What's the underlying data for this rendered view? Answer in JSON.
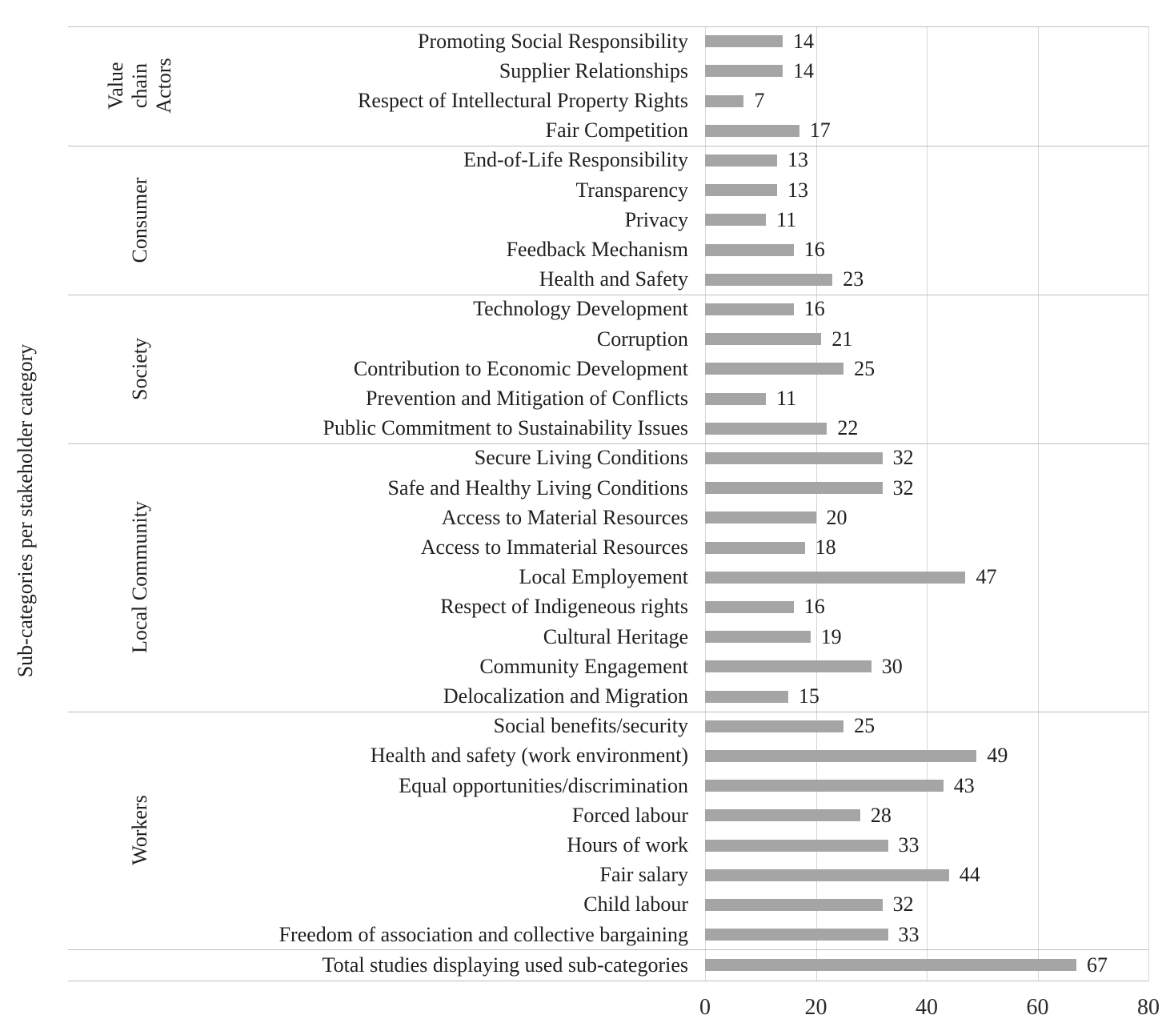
{
  "chart_data": {
    "type": "bar",
    "orientation": "horizontal",
    "title": "",
    "ylabel": "Sub-categories per stakeholder category",
    "xlabel": "",
    "xlim": [
      0,
      80
    ],
    "xticks": [
      "0",
      "20",
      "40",
      "60",
      "80"
    ],
    "grid": "vertical-gridlines-on",
    "legend": "none",
    "bar_color": "#a5a5a5",
    "gridline_color": "#d6d6d6",
    "separator_color": "#bdbdbd",
    "text_color": "#1f1f1f",
    "groups": [
      {
        "label_lines": [
          "Value",
          "chain",
          "Actors"
        ],
        "items": [
          {
            "label": "Promoting Social Responsibility",
            "value": 14
          },
          {
            "label": "Supplier Relationships",
            "value": 14
          },
          {
            "label": "Respect of Intellectural Property Rights",
            "value": 7
          },
          {
            "label": "Fair Competition",
            "value": 17
          }
        ]
      },
      {
        "label_lines": [
          "Consumer"
        ],
        "items": [
          {
            "label": "End-of-Life Responsibility",
            "value": 13
          },
          {
            "label": "Transparency",
            "value": 13
          },
          {
            "label": "Privacy",
            "value": 11
          },
          {
            "label": "Feedback Mechanism",
            "value": 16
          },
          {
            "label": "Health and Safety",
            "value": 23
          }
        ]
      },
      {
        "label_lines": [
          "Society"
        ],
        "items": [
          {
            "label": "Technology Development",
            "value": 16
          },
          {
            "label": "Corruption",
            "value": 21
          },
          {
            "label": "Contribution to Economic Development",
            "value": 25
          },
          {
            "label": "Prevention and Mitigation of Conflicts",
            "value": 11
          },
          {
            "label": "Public Commitment to Sustainability Issues",
            "value": 22
          }
        ]
      },
      {
        "label_lines": [
          "Local Community"
        ],
        "items": [
          {
            "label": "Secure Living Conditions",
            "value": 32
          },
          {
            "label": "Safe and Healthy Living Conditions",
            "value": 32
          },
          {
            "label": "Access to Material Resources",
            "value": 20
          },
          {
            "label": "Access to Immaterial Resources",
            "value": 18
          },
          {
            "label": "Local Employement",
            "value": 47
          },
          {
            "label": "Respect of Indigeneous rights",
            "value": 16
          },
          {
            "label": "Cultural Heritage",
            "value": 19
          },
          {
            "label": "Community Engagement",
            "value": 30
          },
          {
            "label": "Delocalization and Migration",
            "value": 15
          }
        ]
      },
      {
        "label_lines": [
          "Workers"
        ],
        "items": [
          {
            "label": "Social benefits/security",
            "value": 25
          },
          {
            "label": "Health and safety (work environment)",
            "value": 49
          },
          {
            "label": "Equal opportunities/discrimination",
            "value": 43
          },
          {
            "label": "Forced labour",
            "value": 28
          },
          {
            "label": "Hours of work",
            "value": 33
          },
          {
            "label": "Fair salary",
            "value": 44
          },
          {
            "label": "Child labour",
            "value": 32
          },
          {
            "label": "Freedom of association and collective bargaining",
            "value": 33
          }
        ]
      },
      {
        "label_lines": [],
        "items": [
          {
            "label": "Total studies displaying used sub-categories",
            "value": 67
          }
        ]
      }
    ]
  }
}
